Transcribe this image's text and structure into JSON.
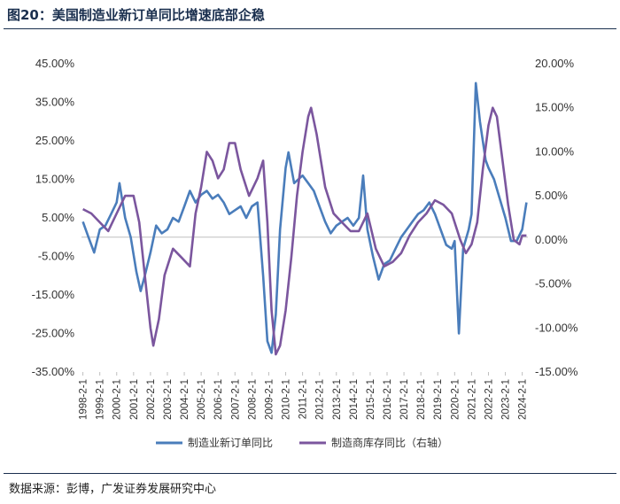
{
  "figure": {
    "title": "图20：美国制造业新订单同比增速底部企稳",
    "source": "数据来源：彭博，广发证券发展研究中心"
  },
  "colors": {
    "series1": "#4a7dbb",
    "series2": "#7b569e",
    "axis": "#bfbfbf",
    "text": "#333333"
  },
  "chart_data": {
    "type": "line",
    "grid": false,
    "legend": "bottom",
    "x_axis": {
      "type": "date",
      "range": [
        "1998-01",
        "2024-06"
      ],
      "tick_labels": [
        "1998-2-1",
        "1999-2-1",
        "2000-2-1",
        "2001-2-1",
        "2002-2-1",
        "2003-2-1",
        "2004-2-1",
        "2005-2-1",
        "2006-2-1",
        "2007-2-1",
        "2008-2-1",
        "2009-2-1",
        "2010-2-1",
        "2011-2-1",
        "2012-2-1",
        "2013-2-1",
        "2014-2-1",
        "2015-2-1",
        "2016-2-1",
        "2017-2-1",
        "2018-2-1",
        "2019-2-1",
        "2020-2-1",
        "2021-2-1",
        "2022-2-1",
        "2023-2-1",
        "2024-2-1"
      ]
    },
    "y_left": {
      "range": [
        -35,
        45
      ],
      "tick_labels": [
        "45.00%",
        "35.00%",
        "25.00%",
        "15.00%",
        "5.00%",
        "-5.00%",
        "-15.00%",
        "-25.00%",
        "-35.00%"
      ]
    },
    "y_right": {
      "range": [
        -15,
        20
      ],
      "tick_labels": [
        "20.00%",
        "15.00%",
        "10.00%",
        "5.00%",
        "0.00%",
        "-5.00%",
        "-10.00%",
        "-15.00%"
      ]
    },
    "series": [
      {
        "name": "制造业新订单同比",
        "axis": "left",
        "points": [
          [
            "1998-02",
            4
          ],
          [
            "1998-06",
            0
          ],
          [
            "1998-10",
            -4
          ],
          [
            "1999-02",
            2
          ],
          [
            "1999-06",
            3
          ],
          [
            "1999-10",
            6
          ],
          [
            "2000-02",
            9
          ],
          [
            "2000-04",
            14
          ],
          [
            "2000-08",
            5
          ],
          [
            "2000-12",
            0
          ],
          [
            "2001-04",
            -9
          ],
          [
            "2001-07",
            -14
          ],
          [
            "2001-10",
            -10
          ],
          [
            "2002-02",
            -4
          ],
          [
            "2002-06",
            3
          ],
          [
            "2002-10",
            1
          ],
          [
            "2003-02",
            2
          ],
          [
            "2003-06",
            5
          ],
          [
            "2003-10",
            4
          ],
          [
            "2004-02",
            8
          ],
          [
            "2004-06",
            12
          ],
          [
            "2004-10",
            9
          ],
          [
            "2005-02",
            11
          ],
          [
            "2005-06",
            12
          ],
          [
            "2005-10",
            10
          ],
          [
            "2006-02",
            11
          ],
          [
            "2006-06",
            9
          ],
          [
            "2006-10",
            6
          ],
          [
            "2007-02",
            7
          ],
          [
            "2007-06",
            8
          ],
          [
            "2007-10",
            5
          ],
          [
            "2008-02",
            8
          ],
          [
            "2008-06",
            9
          ],
          [
            "2008-10",
            -10
          ],
          [
            "2009-01",
            -27
          ],
          [
            "2009-04",
            -30
          ],
          [
            "2009-07",
            -20
          ],
          [
            "2009-10",
            2
          ],
          [
            "2010-02",
            18
          ],
          [
            "2010-04",
            22
          ],
          [
            "2010-08",
            14
          ],
          [
            "2011-02",
            16
          ],
          [
            "2011-06",
            14
          ],
          [
            "2011-10",
            12
          ],
          [
            "2012-02",
            8
          ],
          [
            "2012-06",
            4
          ],
          [
            "2012-10",
            1
          ],
          [
            "2013-02",
            3
          ],
          [
            "2013-06",
            4
          ],
          [
            "2013-10",
            5
          ],
          [
            "2014-02",
            3
          ],
          [
            "2014-06",
            5
          ],
          [
            "2014-09",
            16
          ],
          [
            "2014-12",
            2
          ],
          [
            "2015-04",
            -5
          ],
          [
            "2015-08",
            -11
          ],
          [
            "2015-12",
            -7
          ],
          [
            "2016-04",
            -6
          ],
          [
            "2016-08",
            -3
          ],
          [
            "2016-12",
            0
          ],
          [
            "2017-04",
            2
          ],
          [
            "2017-08",
            4
          ],
          [
            "2017-12",
            6
          ],
          [
            "2018-04",
            7
          ],
          [
            "2018-08",
            9
          ],
          [
            "2018-12",
            6
          ],
          [
            "2019-04",
            2
          ],
          [
            "2019-08",
            -2
          ],
          [
            "2019-12",
            -3
          ],
          [
            "2020-02",
            -1
          ],
          [
            "2020-05",
            -25
          ],
          [
            "2020-08",
            -3
          ],
          [
            "2020-12",
            2
          ],
          [
            "2021-02",
            6
          ],
          [
            "2021-05",
            40
          ],
          [
            "2021-08",
            30
          ],
          [
            "2021-12",
            20
          ],
          [
            "2022-02",
            18
          ],
          [
            "2022-06",
            15
          ],
          [
            "2022-10",
            10
          ],
          [
            "2023-02",
            5
          ],
          [
            "2023-06",
            -1
          ],
          [
            "2023-10",
            -1
          ],
          [
            "2024-02",
            2
          ],
          [
            "2024-05",
            9
          ]
        ]
      },
      {
        "name": "制造商库存同比（右轴）",
        "axis": "right",
        "points": [
          [
            "1998-02",
            3.5
          ],
          [
            "1998-08",
            3
          ],
          [
            "1999-02",
            2
          ],
          [
            "1999-08",
            1
          ],
          [
            "2000-02",
            3
          ],
          [
            "2000-08",
            5
          ],
          [
            "2001-02",
            5
          ],
          [
            "2001-06",
            2
          ],
          [
            "2001-10",
            -4
          ],
          [
            "2002-02",
            -10
          ],
          [
            "2002-04",
            -12
          ],
          [
            "2002-08",
            -9
          ],
          [
            "2002-12",
            -4
          ],
          [
            "2003-06",
            -1
          ],
          [
            "2003-12",
            -2
          ],
          [
            "2004-06",
            -3
          ],
          [
            "2004-10",
            3
          ],
          [
            "2005-02",
            6
          ],
          [
            "2005-06",
            10
          ],
          [
            "2005-10",
            9
          ],
          [
            "2006-02",
            7
          ],
          [
            "2006-06",
            8
          ],
          [
            "2006-10",
            11
          ],
          [
            "2007-02",
            11
          ],
          [
            "2007-06",
            8
          ],
          [
            "2007-12",
            5
          ],
          [
            "2008-06",
            7
          ],
          [
            "2008-10",
            9
          ],
          [
            "2009-01",
            2
          ],
          [
            "2009-04",
            -8
          ],
          [
            "2009-07",
            -13
          ],
          [
            "2009-10",
            -12
          ],
          [
            "2010-02",
            -8
          ],
          [
            "2010-06",
            -2
          ],
          [
            "2010-10",
            5
          ],
          [
            "2011-02",
            10
          ],
          [
            "2011-06",
            14
          ],
          [
            "2011-08",
            15
          ],
          [
            "2011-12",
            12
          ],
          [
            "2012-06",
            6
          ],
          [
            "2012-12",
            3
          ],
          [
            "2013-06",
            2
          ],
          [
            "2013-12",
            1
          ],
          [
            "2014-06",
            1
          ],
          [
            "2014-12",
            3
          ],
          [
            "2015-06",
            -1
          ],
          [
            "2015-12",
            -3
          ],
          [
            "2016-06",
            -2.5
          ],
          [
            "2016-12",
            -1.5
          ],
          [
            "2017-06",
            0.5
          ],
          [
            "2017-12",
            2
          ],
          [
            "2018-06",
            3
          ],
          [
            "2018-12",
            4.5
          ],
          [
            "2019-06",
            4
          ],
          [
            "2019-12",
            3
          ],
          [
            "2020-02",
            2
          ],
          [
            "2020-06",
            0
          ],
          [
            "2020-10",
            -1.5
          ],
          [
            "2021-02",
            -0.5
          ],
          [
            "2021-06",
            2
          ],
          [
            "2021-10",
            8
          ],
          [
            "2022-02",
            13
          ],
          [
            "2022-05",
            15
          ],
          [
            "2022-08",
            14
          ],
          [
            "2022-12",
            9
          ],
          [
            "2023-04",
            4
          ],
          [
            "2023-08",
            0
          ],
          [
            "2023-12",
            -0.5
          ],
          [
            "2024-02",
            0.5
          ],
          [
            "2024-05",
            0.5
          ]
        ]
      }
    ]
  }
}
